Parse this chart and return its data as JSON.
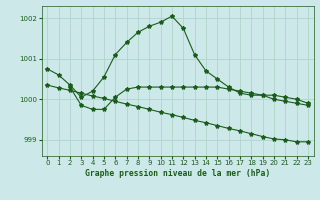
{
  "title": "Graphe pression niveau de la mer (hPa)",
  "bg_color": "#cde8e8",
  "grid_color": "#b0d4cc",
  "line_color": "#1a5c1a",
  "xlim": [
    -0.5,
    23.5
  ],
  "ylim": [
    998.6,
    1002.3
  ],
  "yticks": [
    999,
    1000,
    1001,
    1002
  ],
  "xticks": [
    0,
    1,
    2,
    3,
    4,
    5,
    6,
    7,
    8,
    9,
    10,
    11,
    12,
    13,
    14,
    15,
    16,
    17,
    18,
    19,
    20,
    21,
    22,
    23
  ],
  "series1": {
    "x": [
      0,
      1,
      2,
      3,
      4,
      5,
      6,
      7,
      8,
      9,
      10,
      11,
      12,
      13,
      14,
      15,
      16,
      17,
      18,
      19,
      20,
      21,
      22,
      23
    ],
    "y": [
      1000.75,
      1000.6,
      1000.35,
      1000.05,
      1000.2,
      1000.55,
      1001.1,
      1001.4,
      1001.65,
      1001.8,
      1001.9,
      1002.05,
      1001.75,
      1001.1,
      1000.7,
      1000.5,
      1000.3,
      1000.15,
      1000.1,
      1000.1,
      1000.1,
      1000.05,
      1000.0,
      999.9
    ]
  },
  "series2": {
    "x": [
      2,
      3,
      4,
      5,
      6,
      7,
      8,
      9,
      10,
      11,
      12,
      13,
      14,
      15,
      16,
      17,
      18,
      19,
      20,
      21,
      22,
      23
    ],
    "y": [
      1000.3,
      999.85,
      999.75,
      999.75,
      1000.05,
      1000.25,
      1000.3,
      1000.3,
      1000.3,
      1000.3,
      1000.3,
      1000.3,
      1000.3,
      1000.3,
      1000.25,
      1000.2,
      1000.15,
      1000.1,
      1000.0,
      999.95,
      999.9,
      999.85
    ]
  },
  "series3": {
    "x": [
      0,
      1,
      2,
      3,
      4,
      5,
      6,
      7,
      8,
      9,
      10,
      11,
      12,
      13,
      14,
      15,
      16,
      17,
      18,
      19,
      20,
      21,
      22,
      23
    ],
    "y": [
      1000.35,
      1000.28,
      1000.22,
      1000.15,
      1000.08,
      1000.02,
      999.95,
      999.88,
      999.82,
      999.75,
      999.68,
      999.62,
      999.55,
      999.48,
      999.42,
      999.35,
      999.28,
      999.22,
      999.15,
      999.08,
      999.02,
      999.0,
      998.95,
      998.95
    ]
  }
}
